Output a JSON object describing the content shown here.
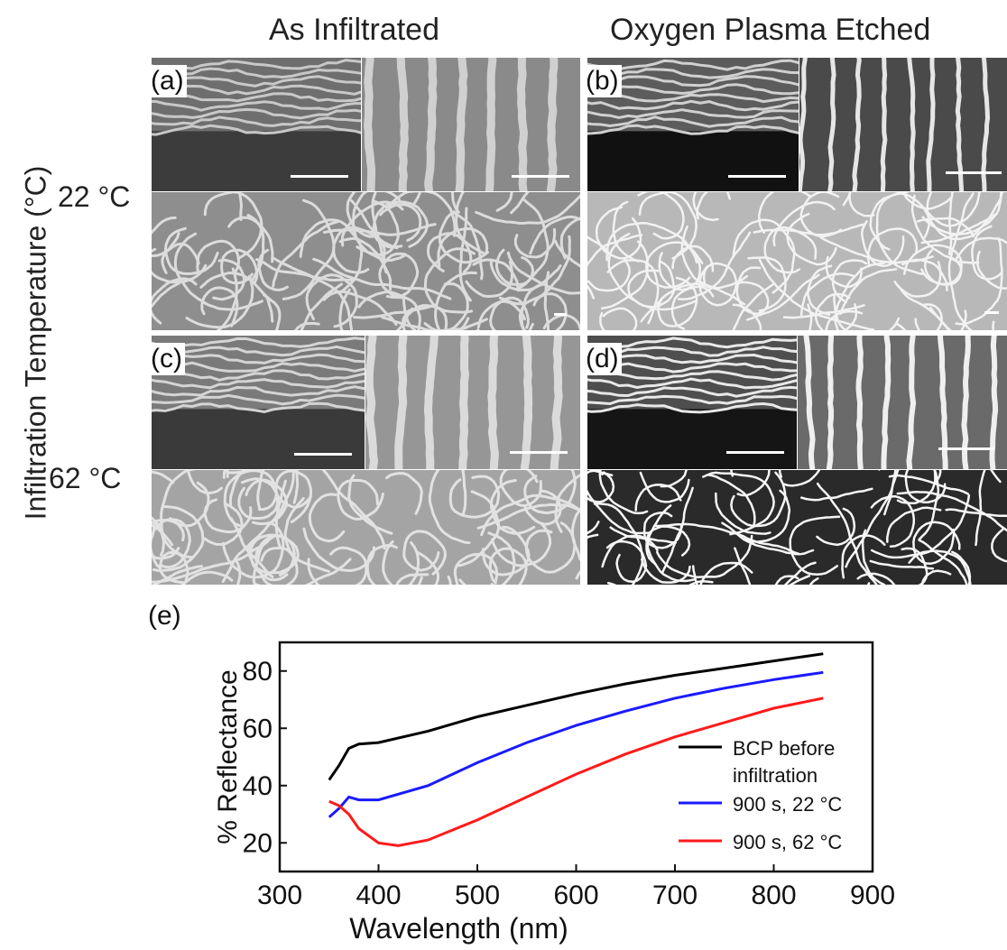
{
  "figure": {
    "col_titles": [
      "As Infiltrated",
      "Oxygen Plasma Etched"
    ],
    "row_axis_title": "Infiltration Temperature (°C)",
    "row_temps": [
      "22 °C",
      "62 °C"
    ],
    "panel_labels": [
      "(a)",
      "(b)",
      "(c)",
      "(d)",
      "(e)"
    ]
  },
  "chart_data": {
    "type": "line",
    "xlabel": "Wavelength (nm)",
    "ylabel": "% Reflectance",
    "xlim": [
      300,
      900
    ],
    "ylim": [
      10,
      90
    ],
    "xticks": [
      300,
      400,
      500,
      600,
      700,
      800,
      900
    ],
    "yticks": [
      20,
      40,
      60,
      80
    ],
    "legend_position": "right",
    "series": [
      {
        "name": "BCP before infiltration",
        "color": "#000000",
        "x": [
          350,
          360,
          370,
          380,
          400,
          450,
          500,
          550,
          600,
          650,
          700,
          750,
          800,
          850
        ],
        "y": [
          42,
          47,
          53,
          54.5,
          55,
          59,
          64,
          68,
          72,
          75.5,
          78.5,
          81,
          83.5,
          86
        ]
      },
      {
        "name": "900 s, 22 °C",
        "color": "#1a1aff",
        "x": [
          350,
          360,
          370,
          380,
          400,
          450,
          500,
          550,
          600,
          650,
          700,
          750,
          800,
          850
        ],
        "y": [
          29,
          32,
          36,
          35,
          35,
          40,
          48,
          55,
          61,
          66,
          70.5,
          74,
          77,
          79.5
        ]
      },
      {
        "name": "900 s, 62 °C",
        "color": "#ff1a1a",
        "x": [
          350,
          360,
          370,
          380,
          400,
          420,
          450,
          500,
          550,
          600,
          650,
          700,
          750,
          800,
          850
        ],
        "y": [
          34.5,
          33,
          30,
          25,
          20,
          19,
          21,
          28,
          36,
          44,
          51,
          57,
          62,
          67,
          70.5
        ]
      }
    ]
  }
}
